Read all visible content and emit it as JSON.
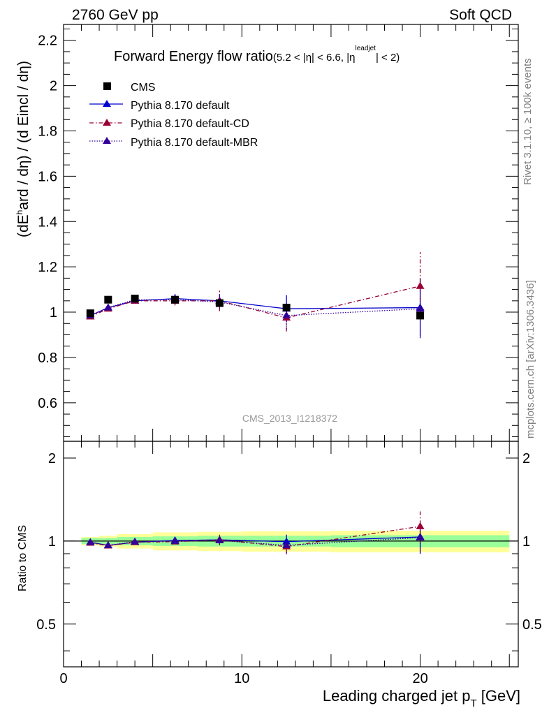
{
  "header": {
    "left": "2760 GeV pp",
    "right": "Soft QCD"
  },
  "title": {
    "main": "Forward Energy flow ratio",
    "sub_a": "(5.2 < |η| < 6.6, |η",
    "sup": "leadjet",
    "sub_b": "| < 2)"
  },
  "ylabel_main": "(dE^hard / dη) / (d Eincl / dη)",
  "ylabel_ratio": "Ratio to CMS",
  "xlabel": "Leading charged jet p_T [GeV]",
  "side_right_top": "Rivet 3.1.10, ≥ 100k events",
  "side_right_bottom": "mcplots.cern.ch [arXiv:1306.3436]",
  "watermark": "CMS_2013_I1218372",
  "legend": [
    {
      "label": "CMS"
    },
    {
      "label": "Pythia 8.170 default"
    },
    {
      "label": "Pythia 8.170 default-CD"
    },
    {
      "label": "Pythia 8.170 default-MBR"
    }
  ],
  "colors": {
    "cms": "#000000",
    "default": "#0000cc",
    "cd": "#990033",
    "mbr": "#330099",
    "band_green": "#99ff99",
    "band_yellow": "#ffff99"
  },
  "chart_data": [
    {
      "type": "scatter",
      "panel": "main",
      "xlim": [
        0,
        25.5
      ],
      "ylim": [
        0.43,
        2.27
      ],
      "xticks": [
        "0",
        "10",
        "20"
      ],
      "yticks": [
        "0.6",
        "0.8",
        "1",
        "1.2",
        "1.4",
        "1.6",
        "1.8",
        "2",
        "2.2"
      ],
      "series": [
        {
          "name": "CMS",
          "x": [
            1.5,
            2.5,
            4,
            6.25,
            8.75,
            12.5,
            20
          ],
          "y": [
            0.995,
            1.055,
            1.06,
            1.055,
            1.04,
            1.02,
            0.985
          ]
        },
        {
          "name": "Pythia 8.170 default",
          "x": [
            1.5,
            2.5,
            4,
            6.25,
            8.75,
            12.5,
            20
          ],
          "y": [
            0.985,
            1.02,
            1.05,
            1.06,
            1.05,
            1.015,
            1.02
          ],
          "yerr": [
            0.01,
            0.01,
            0.01,
            0.02,
            0.03,
            0.06,
            0.13
          ]
        },
        {
          "name": "Pythia 8.170 default-CD",
          "x": [
            1.5,
            2.5,
            4,
            6.25,
            8.75,
            12.5,
            20
          ],
          "y": [
            0.98,
            1.015,
            1.05,
            1.05,
            1.05,
            0.975,
            1.115
          ],
          "yerr": [
            0.01,
            0.01,
            0.01,
            0.02,
            0.045,
            0.06,
            0.15
          ]
        },
        {
          "name": "Pythia 8.170 default-MBR",
          "x": [
            1.5,
            2.5,
            4,
            6.25,
            8.75,
            12.5,
            20
          ],
          "y": [
            0.985,
            1.02,
            1.055,
            1.055,
            1.045,
            0.985,
            1.015
          ],
          "yerr": [
            0.01,
            0.01,
            0.01,
            0.02,
            0.03,
            0.06,
            0.13
          ]
        }
      ]
    },
    {
      "type": "scatter",
      "panel": "ratio",
      "xlim": [
        0,
        25.5
      ],
      "ylim": [
        0.35,
        2.3
      ],
      "xticks": [
        "0",
        "10",
        "20"
      ],
      "yticks": [
        "0.5",
        "1",
        "2"
      ],
      "bands": {
        "x_edges": [
          1,
          2,
          3,
          5,
          7.5,
          10,
          15,
          25
        ],
        "green_halfwidth": [
          0.025,
          0.025,
          0.035,
          0.04,
          0.045,
          0.045,
          0.05
        ],
        "yellow_halfwidth": [
          0.035,
          0.045,
          0.06,
          0.075,
          0.08,
          0.085,
          0.09
        ]
      },
      "series": [
        {
          "name": "Pythia 8.170 default",
          "x": [
            1.5,
            2.5,
            4,
            6.25,
            8.75,
            12.5,
            20
          ],
          "y": [
            0.99,
            0.965,
            0.99,
            1.005,
            1.01,
            0.995,
            1.035
          ],
          "yerr": [
            0.01,
            0.01,
            0.01,
            0.02,
            0.03,
            0.06,
            0.13
          ]
        },
        {
          "name": "Pythia 8.170 default-CD",
          "x": [
            1.5,
            2.5,
            4,
            6.25,
            8.75,
            12.5,
            20
          ],
          "y": [
            0.985,
            0.962,
            0.99,
            0.995,
            1.01,
            0.955,
            1.13
          ],
          "yerr": [
            0.01,
            0.01,
            0.01,
            0.02,
            0.045,
            0.06,
            0.15
          ]
        },
        {
          "name": "Pythia 8.170 default-MBR",
          "x": [
            1.5,
            2.5,
            4,
            6.25,
            8.75,
            12.5,
            20
          ],
          "y": [
            0.99,
            0.965,
            0.995,
            1.0,
            1.005,
            0.965,
            1.03
          ],
          "yerr": [
            0.01,
            0.01,
            0.01,
            0.02,
            0.03,
            0.06,
            0.13
          ]
        }
      ]
    }
  ]
}
